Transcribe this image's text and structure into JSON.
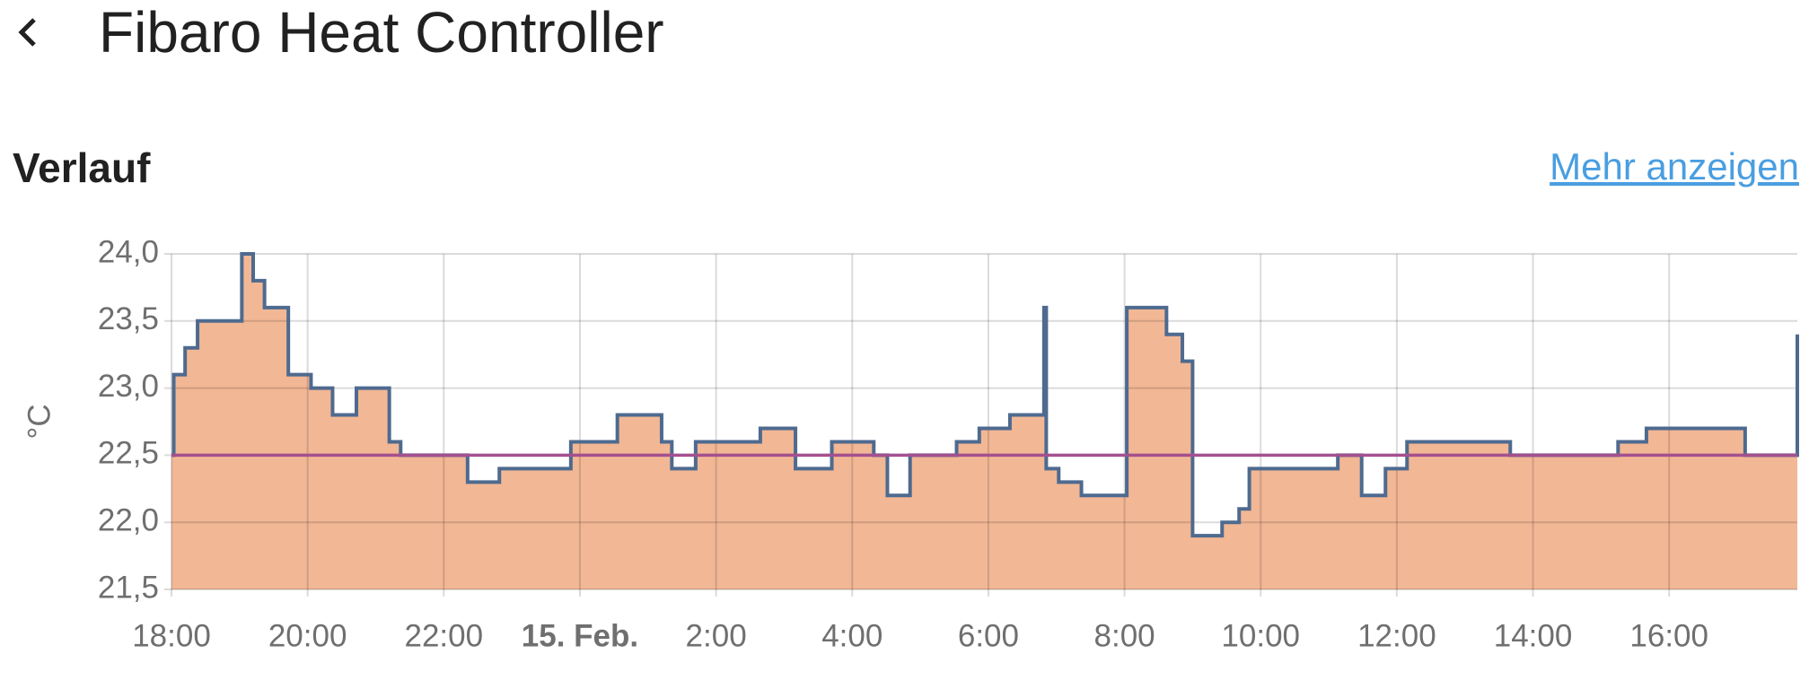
{
  "header": {
    "title": "Fibaro Heat Controller"
  },
  "section": {
    "title": "Verlauf",
    "link": "Mehr anzeigen"
  },
  "chart_data": {
    "type": "step",
    "y_label": "°C",
    "xlim": [
      "18:00",
      "17:53"
    ],
    "ylim": [
      21.5,
      24.0
    ],
    "xticks": [
      "18:00",
      "20:00",
      "22:00",
      {
        "value": "0:00",
        "label": "15. Feb."
      },
      "2:00",
      "4:00",
      "6:00",
      "8:00",
      "10:00",
      "12:00",
      "14:00",
      "16:00"
    ],
    "yticks": [
      {
        "value": 21.5,
        "label": "21,5"
      },
      {
        "value": 22.0,
        "label": "22,0"
      },
      {
        "value": 22.5,
        "label": "22,5"
      },
      {
        "value": 23.0,
        "label": "23,0"
      },
      {
        "value": 23.5,
        "label": "23,5"
      },
      {
        "value": 24.0,
        "label": "24,0"
      }
    ],
    "grid": true,
    "fill_color": "#f2b795",
    "series": [
      {
        "color": "#4e6a8f",
        "x": [
          "18:00",
          "18:02",
          "18:12",
          "18:23",
          "19:02",
          "19:12",
          "19:22",
          "19:43",
          "20:03",
          "20:22",
          "20:43",
          "21:12",
          "21:22",
          "22:21",
          "22:49",
          "23:52",
          "0:33",
          "1:12",
          "1:21",
          "1:42",
          "2:39",
          "3:10",
          "3:42",
          "4:19",
          "4:31",
          "4:51",
          "5:32",
          "5:52",
          "6:19",
          "6:49",
          "6:51",
          "7:02",
          "7:22",
          "8:02",
          "8:37",
          "8:51",
          "9:00",
          "9:26",
          "9:41",
          "9:50",
          "11:08",
          "11:29",
          "11:50",
          "12:09",
          "13:40",
          "15:15",
          "15:40",
          "17:07",
          "17:53"
        ],
        "values": [
          22.5,
          23.1,
          23.3,
          23.5,
          24.0,
          23.8,
          23.6,
          23.1,
          23.0,
          22.8,
          23.0,
          22.6,
          22.5,
          22.3,
          22.4,
          22.6,
          22.8,
          22.6,
          22.4,
          22.6,
          22.7,
          22.4,
          22.6,
          22.5,
          22.2,
          22.5,
          22.6,
          22.7,
          22.8,
          23.6,
          22.4,
          22.3,
          22.2,
          23.6,
          23.4,
          23.2,
          21.9,
          22.0,
          22.1,
          22.4,
          22.5,
          22.2,
          22.4,
          22.6,
          22.5,
          22.6,
          22.7,
          22.5,
          23.4
        ]
      },
      {
        "color": "#a4508f",
        "x": [
          "18:00",
          "17:53"
        ],
        "values": [
          22.5,
          22.5
        ]
      }
    ]
  }
}
